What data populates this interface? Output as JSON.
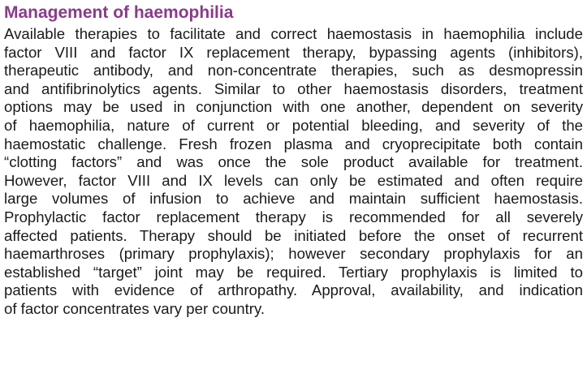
{
  "section": {
    "title": "Management of haemophilia",
    "lines": [
      "Available therapies to facilitate and correct haemostasis in haemophilia include",
      "factor VIII and factor IX replacement therapy, bypassing agents (inhibitors),",
      "therapeutic antibody, and non-concentrate therapies, such as desmopressin",
      "and antifibrinolytics agents. Similar to other haemostasis disorders, treatment",
      "options may be used in conjunction with one another, dependent on severity",
      "of haemophilia, nature of current or potential bleeding, and severity of the",
      "haemostatic challenge. Fresh frozen plasma and cryoprecipitate both contain",
      "“clotting factors” and was once the sole product available for treatment.",
      "However, factor VIII and IX levels can only be estimated and often require",
      "large volumes of infusion to achieve and maintain sufficient haemostasis.",
      "Prophylactic factor replacement therapy is recommended for all severely",
      "affected patients. Therapy should be initiated before the onset of recurrent",
      "haemarthroses (primary prophylaxis); however secondary prophylaxis for an",
      "established “target” joint may be required. Tertiary prophylaxis is limited to",
      "patients with evidence of arthropathy. Approval, availability, and indication",
      "of factor concentrates vary per country."
    ]
  },
  "colors": {
    "title": "#8a3b8a",
    "text": "#1a1a1a"
  }
}
